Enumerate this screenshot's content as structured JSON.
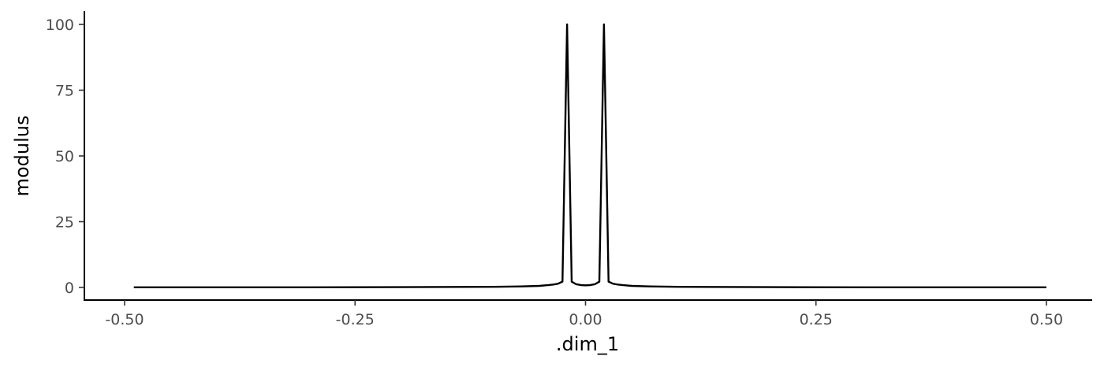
{
  "chart_data": {
    "type": "line",
    "title": "",
    "xlabel": ".dim_1",
    "ylabel": "modulus",
    "xlim": [
      -0.5,
      0.5
    ],
    "ylim": [
      0,
      100
    ],
    "x_ticks": [
      -0.5,
      -0.25,
      0.0,
      0.25,
      0.5
    ],
    "x_tick_labels": [
      "-0.50",
      "-0.25",
      "0.00",
      "0.25",
      "0.50"
    ],
    "y_ticks": [
      0,
      25,
      50,
      75,
      100
    ],
    "y_tick_labels": [
      "0",
      "25",
      "50",
      "75",
      "100"
    ],
    "grid": false,
    "legend": "none",
    "line_color": "#000000",
    "series": [
      {
        "x": [
          -0.49,
          -0.3,
          -0.2,
          -0.1,
          -0.07,
          -0.05,
          -0.04,
          -0.035,
          -0.03,
          -0.025,
          -0.02,
          -0.015,
          -0.01,
          -0.005,
          0.0,
          0.005,
          0.01,
          0.015,
          0.02,
          0.025,
          0.03,
          0.035,
          0.04,
          0.05,
          0.07,
          0.1,
          0.2,
          0.3,
          0.5
        ],
        "y": [
          0.05,
          0.07,
          0.12,
          0.25,
          0.4,
          0.6,
          0.9,
          1.1,
          1.4,
          2.2,
          100,
          2.2,
          1.2,
          0.9,
          0.8,
          0.9,
          1.2,
          2.2,
          100,
          2.2,
          1.4,
          1.1,
          0.9,
          0.6,
          0.4,
          0.25,
          0.12,
          0.07,
          0.05
        ]
      }
    ]
  }
}
